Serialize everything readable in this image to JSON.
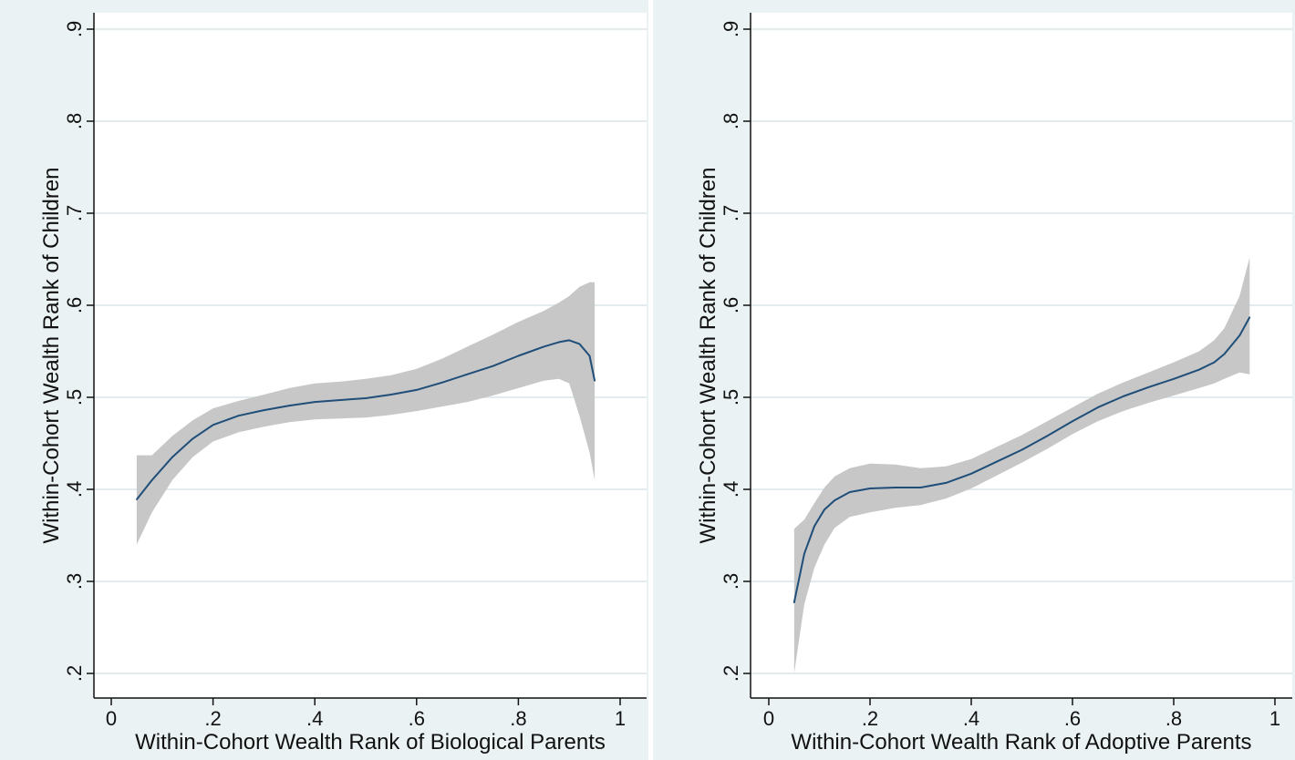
{
  "chart_data": [
    {
      "type": "line",
      "xlabel": "Within-Cohort Wealth Rank of Biological Parents",
      "ylabel": "Within-Cohort Wealth Rank of Children",
      "xlim": [
        0,
        1
      ],
      "ylim": [
        0.2,
        0.9
      ],
      "x_ticks": [
        "0",
        ".2",
        ".4",
        ".6",
        ".8",
        "1"
      ],
      "y_ticks": [
        ".2",
        ".3",
        ".4",
        ".5",
        ".6",
        ".7",
        ".8",
        ".9"
      ],
      "grid": true,
      "series": [
        {
          "x": [
            0.05,
            0.08,
            0.12,
            0.16,
            0.2,
            0.25,
            0.3,
            0.35,
            0.4,
            0.45,
            0.5,
            0.55,
            0.6,
            0.65,
            0.7,
            0.75,
            0.8,
            0.85,
            0.88,
            0.9,
            0.92,
            0.94,
            0.95
          ],
          "values": [
            0.389,
            0.41,
            0.435,
            0.455,
            0.47,
            0.48,
            0.486,
            0.491,
            0.495,
            0.497,
            0.499,
            0.503,
            0.508,
            0.516,
            0.525,
            0.534,
            0.545,
            0.555,
            0.56,
            0.562,
            0.558,
            0.545,
            0.518
          ],
          "lower": [
            0.34,
            0.375,
            0.41,
            0.435,
            0.452,
            0.462,
            0.468,
            0.473,
            0.476,
            0.477,
            0.478,
            0.481,
            0.485,
            0.49,
            0.495,
            0.502,
            0.51,
            0.518,
            0.52,
            0.515,
            0.48,
            0.44,
            0.41
          ],
          "upper": [
            0.437,
            0.437,
            0.458,
            0.475,
            0.488,
            0.496,
            0.503,
            0.51,
            0.515,
            0.517,
            0.52,
            0.524,
            0.531,
            0.542,
            0.555,
            0.568,
            0.582,
            0.594,
            0.603,
            0.61,
            0.62,
            0.625,
            0.625
          ]
        }
      ]
    },
    {
      "type": "line",
      "xlabel": "Within-Cohort Wealth Rank of Adoptive Parents",
      "ylabel": "Within-Cohort Wealth Rank of Children",
      "xlim": [
        0,
        1
      ],
      "ylim": [
        0.2,
        0.9
      ],
      "x_ticks": [
        "0",
        ".2",
        ".4",
        ".6",
        ".8",
        "1"
      ],
      "y_ticks": [
        ".2",
        ".3",
        ".4",
        ".5",
        ".6",
        ".7",
        ".8",
        ".9"
      ],
      "grid": true,
      "series": [
        {
          "x": [
            0.05,
            0.07,
            0.09,
            0.11,
            0.13,
            0.16,
            0.2,
            0.25,
            0.3,
            0.35,
            0.4,
            0.45,
            0.5,
            0.55,
            0.6,
            0.65,
            0.7,
            0.75,
            0.8,
            0.85,
            0.88,
            0.9,
            0.93,
            0.95
          ],
          "values": [
            0.277,
            0.33,
            0.36,
            0.378,
            0.388,
            0.397,
            0.401,
            0.402,
            0.402,
            0.407,
            0.417,
            0.43,
            0.443,
            0.458,
            0.474,
            0.489,
            0.501,
            0.511,
            0.52,
            0.53,
            0.538,
            0.547,
            0.567,
            0.587
          ],
          "lower": [
            0.2,
            0.275,
            0.315,
            0.34,
            0.358,
            0.37,
            0.375,
            0.38,
            0.383,
            0.39,
            0.401,
            0.415,
            0.429,
            0.444,
            0.46,
            0.474,
            0.485,
            0.494,
            0.502,
            0.51,
            0.515,
            0.52,
            0.527,
            0.525
          ],
          "upper": [
            0.357,
            0.367,
            0.385,
            0.402,
            0.414,
            0.423,
            0.428,
            0.427,
            0.423,
            0.425,
            0.433,
            0.446,
            0.459,
            0.474,
            0.489,
            0.504,
            0.516,
            0.527,
            0.538,
            0.55,
            0.562,
            0.575,
            0.61,
            0.652
          ]
        }
      ]
    }
  ]
}
